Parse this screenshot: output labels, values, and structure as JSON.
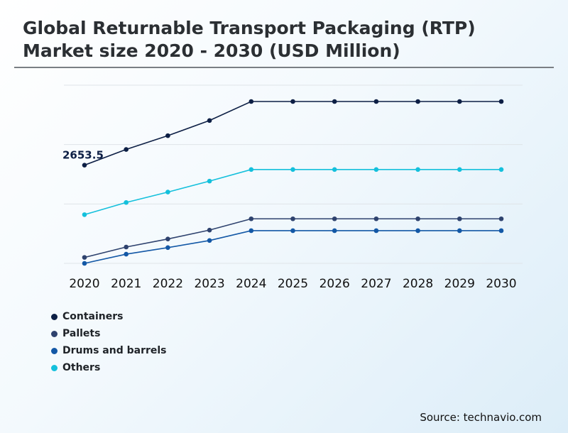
{
  "page": {
    "title_lines": [
      "Global Returnable Transport Packaging (RTP)",
      "Market size 2020 - 2030 (USD Million)"
    ],
    "source": "Source: technavio.com"
  },
  "chart_data": {
    "type": "line",
    "title": "Global Returnable Transport Packaging (RTP) Market size 2020 - 2030 (USD Million)",
    "categories": [
      "2020",
      "2021",
      "2022",
      "2023",
      "2024",
      "2025",
      "2026",
      "2027",
      "2028",
      "2029",
      "2030"
    ],
    "series": [
      {
        "name": "Containers",
        "color": "#0d1f45",
        "values": [
          2653.5,
          2918,
          3150,
          3405,
          3725,
          3725,
          3725,
          3725,
          3725,
          3725,
          3725
        ]
      },
      {
        "name": "Pallets",
        "color": "#2e426e",
        "values": [
          1100,
          1275,
          1410,
          1560,
          1750,
          1750,
          1750,
          1750,
          1750,
          1750,
          1750
        ]
      },
      {
        "name": "Drums and barrels",
        "color": "#1358a6",
        "values": [
          1000,
          1155,
          1265,
          1385,
          1550,
          1550,
          1550,
          1550,
          1550,
          1550,
          1550
        ]
      },
      {
        "name": "Others",
        "color": "#14c0dc",
        "values": [
          1820,
          2025,
          2200,
          2385,
          2580,
          2580,
          2580,
          2580,
          2580,
          2580,
          2580
        ]
      }
    ],
    "annotations": [
      {
        "series": "Containers",
        "category": "2020",
        "text": "2653.5"
      }
    ],
    "ylim": [
      1000,
      4000
    ],
    "grid": true,
    "legend_position": "bottom-left"
  }
}
